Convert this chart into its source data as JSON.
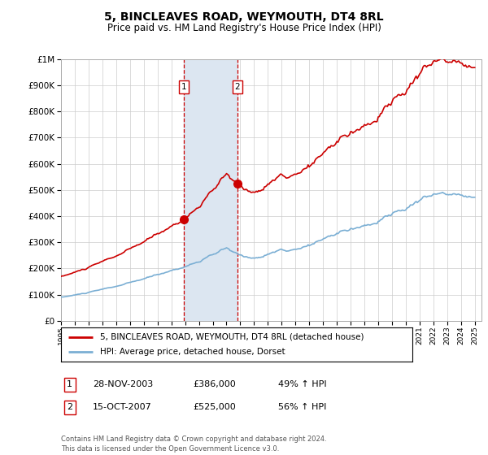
{
  "title": "5, BINCLEAVES ROAD, WEYMOUTH, DT4 8RL",
  "subtitle": "Price paid vs. HM Land Registry's House Price Index (HPI)",
  "red_line_label": "5, BINCLEAVES ROAD, WEYMOUTH, DT4 8RL (detached house)",
  "blue_line_label": "HPI: Average price, detached house, Dorset",
  "transaction1_date": "28-NOV-2003",
  "transaction1_price": "£386,000",
  "transaction1_hpi": "49% ↑ HPI",
  "transaction2_date": "15-OCT-2007",
  "transaction2_price": "£525,000",
  "transaction2_hpi": "56% ↑ HPI",
  "footer": "Contains HM Land Registry data © Crown copyright and database right 2024.\nThis data is licensed under the Open Government Licence v3.0.",
  "red_color": "#cc0000",
  "blue_color": "#7bafd4",
  "shaded_color": "#dce6f1",
  "vline_color": "#cc0000",
  "grid_color": "#cccccc",
  "transaction1_x": 2003.91,
  "transaction2_x": 2007.79,
  "ylim_min": 0,
  "ylim_max": 1000000,
  "xlim_min": 1995.0,
  "xlim_max": 2025.5
}
